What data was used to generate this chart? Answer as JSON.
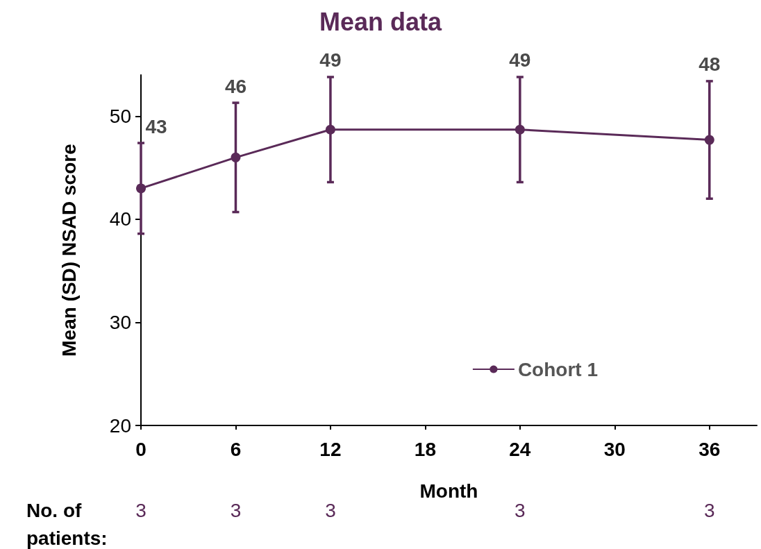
{
  "chart_data": {
    "type": "line",
    "title": "Mean data",
    "xlabel": "Month",
    "ylabel": "Mean (SD) NSAD score",
    "x": [
      0,
      6,
      12,
      24,
      36
    ],
    "series": [
      {
        "name": "Cohort 1",
        "color": "#5a2a58",
        "values": [
          43,
          46,
          48.7,
          48.7,
          47.7
        ],
        "errors": [
          4.4,
          5.3,
          5.1,
          5.1,
          5.7
        ],
        "value_labels": [
          "43",
          "46",
          "49",
          "49",
          "48"
        ]
      }
    ],
    "xlim": [
      0,
      39
    ],
    "xticks": [
      0,
      6,
      12,
      18,
      24,
      30,
      36
    ],
    "ylim": [
      20,
      54
    ],
    "yticks": [
      20,
      30,
      40,
      50
    ],
    "grid": false,
    "legend": "bottom right",
    "marker": "circle",
    "line_style": "solid",
    "annotations": [
      "No. of patients:",
      "3",
      "3",
      "3",
      "3",
      "3"
    ]
  }
}
